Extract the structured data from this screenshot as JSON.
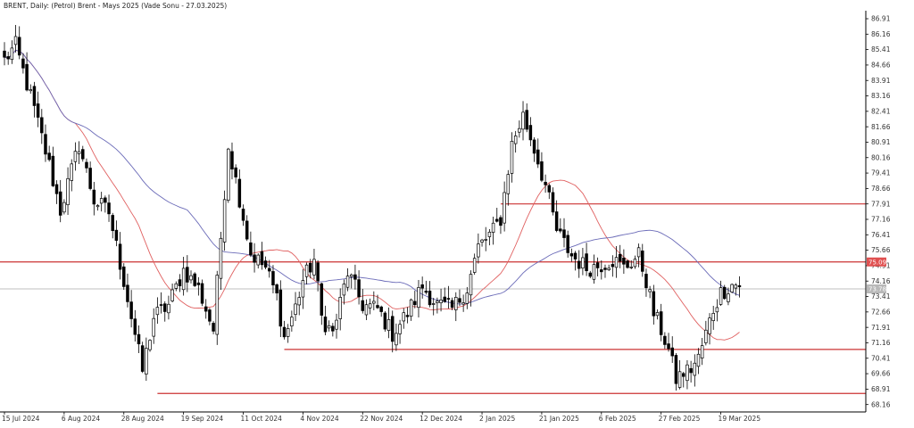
{
  "chart_data": {
    "type": "candlestick",
    "title": "BRENT, Daily:  (Petrol) Brent - Mays 2025 (Vade Sonu - 27.03.2025)",
    "xlabel": "",
    "ylabel": "",
    "ylim": [
      67.8,
      87.3
    ],
    "y_ticks": [
      "86.91",
      "86.16",
      "85.41",
      "84.66",
      "83.91",
      "83.16",
      "82.41",
      "81.66",
      "80.91",
      "80.16",
      "79.41",
      "78.66",
      "77.91",
      "77.16",
      "76.41",
      "75.66",
      "74.91",
      "74.16",
      "73.41",
      "72.66",
      "71.91",
      "71.16",
      "70.41",
      "69.66",
      "68.91",
      "68.16"
    ],
    "x_ticks": [
      "15 Jul 2024",
      "6 Aug 2024",
      "28 Aug 2024",
      "19 Sep 2024",
      "11 Oct 2024",
      "4 Nov 2024",
      "22 Nov 2024",
      "12 Dec 2024",
      "2 Jan 2025",
      "21 Jan 2025",
      "6 Feb 2025",
      "27 Feb 2025",
      "19 Mar 2025"
    ],
    "x_tick_index": [
      0,
      16,
      32,
      48,
      64,
      80,
      96,
      112,
      128,
      144,
      160,
      176,
      192
    ],
    "bar_count": 198,
    "grid": false,
    "legend": "none",
    "price_anchors": [
      [
        0,
        84.9
      ],
      [
        3,
        85.6
      ],
      [
        8,
        82.5
      ],
      [
        12,
        79.8
      ],
      [
        15,
        77.6
      ],
      [
        20,
        80.8
      ],
      [
        24,
        78.1
      ],
      [
        28,
        77.5
      ],
      [
        32,
        74.2
      ],
      [
        37,
        69.8
      ],
      [
        40,
        72.4
      ],
      [
        44,
        73.0
      ],
      [
        48,
        74.7
      ],
      [
        52,
        73.8
      ],
      [
        56,
        71.8
      ],
      [
        60,
        80.8
      ],
      [
        63,
        78.2
      ],
      [
        66,
        75.5
      ],
      [
        70,
        74.8
      ],
      [
        73,
        73.4
      ],
      [
        75,
        71.4
      ],
      [
        78,
        72.9
      ],
      [
        80,
        74.2
      ],
      [
        83,
        75.2
      ],
      [
        85,
        72.4
      ],
      [
        88,
        71.6
      ],
      [
        92,
        74.6
      ],
      [
        96,
        73.0
      ],
      [
        100,
        72.8
      ],
      [
        104,
        71.6
      ],
      [
        108,
        72.6
      ],
      [
        112,
        73.9
      ],
      [
        116,
        73.0
      ],
      [
        120,
        72.8
      ],
      [
        124,
        73.8
      ],
      [
        127,
        75.8
      ],
      [
        131,
        76.6
      ],
      [
        133,
        77.2
      ],
      [
        136,
        80.8
      ],
      [
        139,
        82.2
      ],
      [
        142,
        80.6
      ],
      [
        145,
        78.8
      ],
      [
        148,
        76.6
      ],
      [
        152,
        75.4
      ],
      [
        156,
        74.8
      ],
      [
        159,
        74.9
      ],
      [
        163,
        75.2
      ],
      [
        166,
        74.8
      ],
      [
        170,
        75.4
      ],
      [
        172,
        74.2
      ],
      [
        174,
        72.6
      ],
      [
        176,
        71.8
      ],
      [
        178,
        70.8
      ],
      [
        180,
        69.4
      ],
      [
        182,
        69.7
      ],
      [
        184,
        69.9
      ],
      [
        186,
        70.4
      ],
      [
        188,
        71.6
      ],
      [
        190,
        72.8
      ],
      [
        192,
        73.6
      ],
      [
        195,
        74.0
      ]
    ],
    "series": [
      {
        "values_from": "ohlc",
        "color": "#000000"
      },
      {
        "name": "",
        "type": "moving_average",
        "period": 20,
        "color": "#e06060"
      },
      {
        "name": "",
        "type": "moving_average",
        "period": 50,
        "color": "#6b6bb8"
      }
    ],
    "horizontal_levels": [
      {
        "value": 77.91,
        "from_index": 133
      },
      {
        "value": 75.09,
        "from_index": 0,
        "tag": "75.09",
        "tag_color": "#e05050"
      },
      {
        "value": 70.84,
        "from_index": 75
      },
      {
        "value": 68.7,
        "from_index": 41
      }
    ],
    "current_price": {
      "value": 73.78,
      "label": "73.78",
      "color": "#aaaaaa"
    }
  },
  "colors": {
    "axis": "#000000",
    "level": "#cc3333",
    "level_tag_bg": "#e05050",
    "price_tag_bg": "#b8b8b8"
  }
}
